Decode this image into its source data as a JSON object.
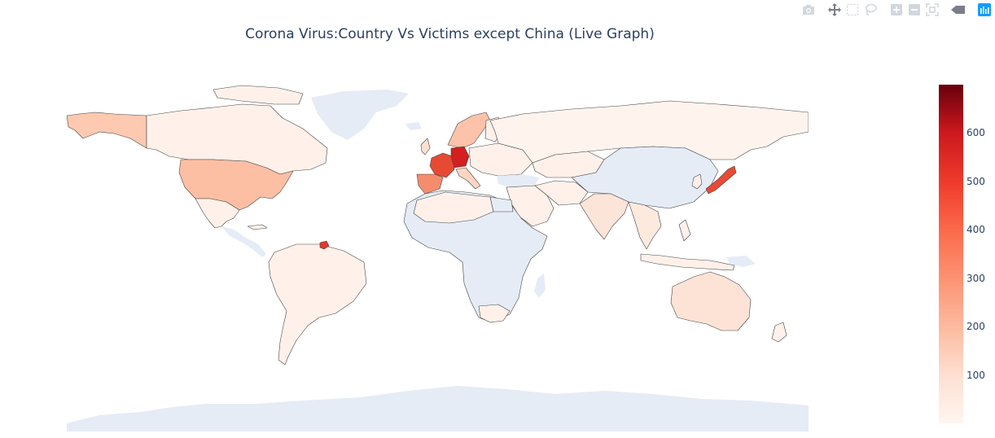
{
  "title": "Corona Virus:Country Vs Victims except China (Live Graph)",
  "modebar": {
    "buttons": [
      "camera-icon",
      "pan-icon",
      "box-select-icon",
      "lasso-icon",
      "zoom-in-icon",
      "zoom-out-icon",
      "autoscale-icon",
      "reset-icon",
      "plotly-logo-icon"
    ]
  },
  "map": {
    "projection": "equirectangular",
    "land_no_data_color": "#e5ecf6",
    "ocean_color": "#ffffff",
    "border_color": "#444444"
  },
  "colorbar": {
    "colorscale": "Reds",
    "range": [
      0,
      700
    ],
    "ticks": [
      100,
      200,
      300,
      400,
      500,
      600
    ]
  },
  "chart_data": {
    "type": "heatmap",
    "title": "Corona Virus:Country Vs Victims except China (Live Graph)",
    "regions": [
      {
        "name": "Germany",
        "value": 640
      },
      {
        "name": "France",
        "value": 420
      },
      {
        "name": "Japan",
        "value": 460
      },
      {
        "name": "Italy",
        "value": 120
      },
      {
        "name": "Spain",
        "value": 350
      },
      {
        "name": "USA",
        "value": 240
      },
      {
        "name": "Alaska",
        "value": 240
      },
      {
        "name": "Canada",
        "value": 30
      },
      {
        "name": "French Guiana",
        "value": 470
      },
      {
        "name": "Russia",
        "value": 10
      },
      {
        "name": "Australia",
        "value": 40
      },
      {
        "name": "Norway",
        "value": 60
      },
      {
        "name": "UK",
        "value": 60
      }
    ]
  }
}
